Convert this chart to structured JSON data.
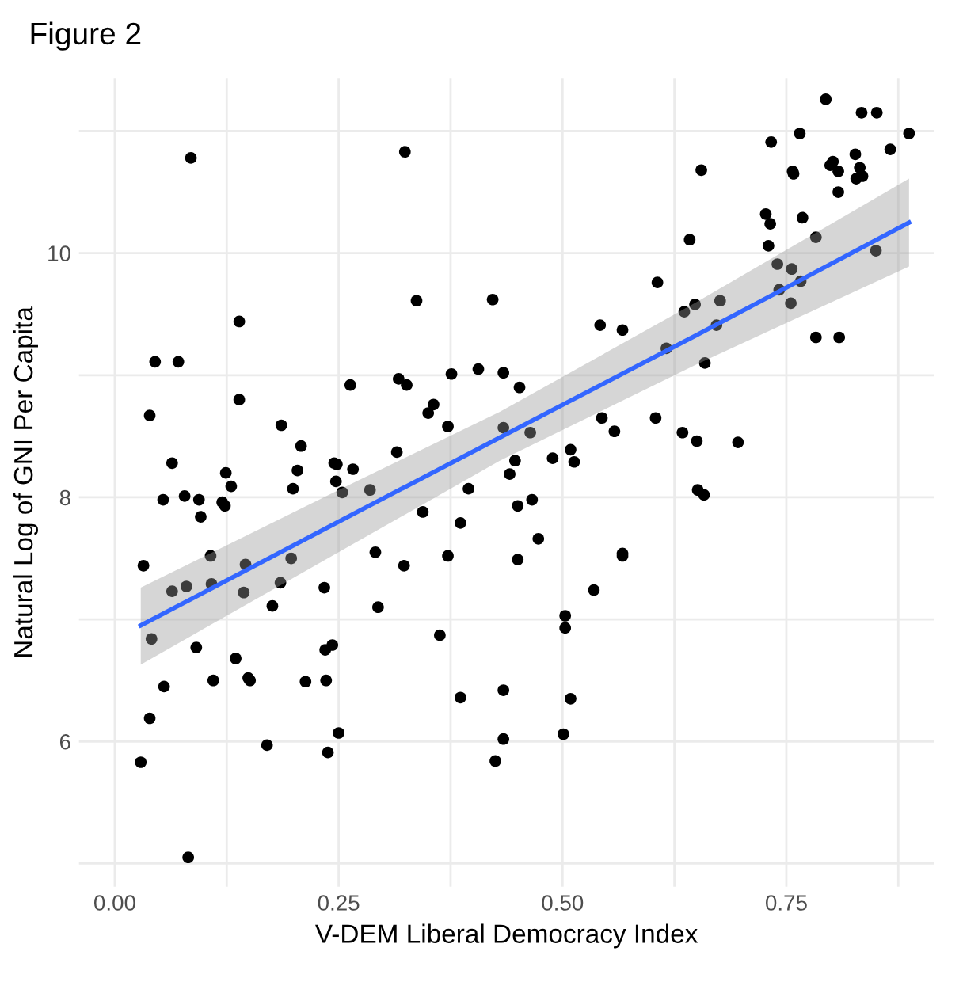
{
  "chart_data": {
    "type": "scatter",
    "title": "Figure 2",
    "xlabel": "V-DEM Liberal Democracy Index",
    "ylabel": "Natural Log of GNI Per Capita",
    "xlim": [
      -0.04,
      0.915
    ],
    "ylim": [
      4.81,
      11.43
    ],
    "xticks": [
      {
        "value": 0,
        "label": "0.00"
      },
      {
        "value": 0.125,
        "label": null
      },
      {
        "value": 0.25,
        "label": "0.25"
      },
      {
        "value": 0.375,
        "label": null
      },
      {
        "value": 0.5,
        "label": "0.50"
      },
      {
        "value": 0.625,
        "label": null
      },
      {
        "value": 0.75,
        "label": "0.75"
      },
      {
        "value": 0.875,
        "label": null
      }
    ],
    "yticks": [
      {
        "value": 5,
        "label": null
      },
      6,
      {
        "value": 7,
        "label": null
      },
      8,
      {
        "value": 9,
        "label": null
      },
      10,
      {
        "value": 11,
        "label": null
      }
    ],
    "grid": true,
    "series": [
      {
        "marker": "circle",
        "color": "#000000",
        "x": [
          0.085,
          0.324,
          0.139,
          0.337,
          0.422,
          0.045,
          0.071,
          0.376,
          0.406,
          0.434,
          0.452,
          0.263,
          0.317,
          0.326,
          0.139,
          0.039,
          0.186,
          0.356,
          0.35,
          0.372,
          0.434,
          0.208,
          0.064,
          0.315,
          0.245,
          0.248,
          0.124,
          0.204,
          0.266,
          0.447,
          0.441,
          0.247,
          0.13,
          0.199,
          0.254,
          0.285,
          0.395,
          0.054,
          0.078,
          0.094,
          0.12,
          0.123,
          0.096,
          0.344,
          0.386,
          0.45,
          0.032,
          0.107,
          0.146,
          0.197,
          0.291,
          0.372,
          0.45,
          0.323,
          0.064,
          0.08,
          0.108,
          0.144,
          0.185,
          0.234,
          0.176,
          0.294,
          0.041,
          0.091,
          0.135,
          0.235,
          0.243,
          0.363,
          0.055,
          0.11,
          0.149,
          0.151,
          0.213,
          0.236,
          0.386,
          0.434,
          0.039,
          0.25,
          0.17,
          0.238,
          0.434,
          0.425,
          0.029,
          0.082,
          0.466,
          0.473,
          0.567,
          0.567,
          0.535,
          0.503,
          0.503,
          0.651,
          0.658,
          0.509,
          0.501,
          0.794,
          0.834,
          0.851,
          0.765,
          0.887,
          0.733,
          0.866,
          0.827,
          0.655,
          0.802,
          0.799,
          0.808,
          0.757,
          0.758,
          0.832,
          0.835,
          0.828,
          0.808,
          0.727,
          0.732,
          0.768,
          0.73,
          0.783,
          0.642,
          0.85,
          0.74,
          0.756,
          0.766,
          0.742,
          0.755,
          0.606,
          0.676,
          0.648,
          0.636,
          0.672,
          0.542,
          0.567,
          0.783,
          0.809,
          0.616,
          0.659,
          0.464,
          0.544,
          0.558,
          0.604,
          0.634,
          0.65,
          0.696,
          0.489,
          0.509,
          0.513
        ],
        "values": [
          10.78,
          10.83,
          9.44,
          9.61,
          9.62,
          9.11,
          9.11,
          9.01,
          9.05,
          9.02,
          8.9,
          8.92,
          8.97,
          8.92,
          8.8,
          8.67,
          8.59,
          8.76,
          8.69,
          8.58,
          8.57,
          8.42,
          8.28,
          8.37,
          8.28,
          8.27,
          8.2,
          8.22,
          8.23,
          8.3,
          8.19,
          8.13,
          8.09,
          8.07,
          8.04,
          8.06,
          8.07,
          7.98,
          8.01,
          7.98,
          7.96,
          7.93,
          7.84,
          7.88,
          7.79,
          7.93,
          7.44,
          7.52,
          7.45,
          7.5,
          7.55,
          7.52,
          7.49,
          7.44,
          7.23,
          7.27,
          7.29,
          7.22,
          7.3,
          7.26,
          7.11,
          7.1,
          6.84,
          6.77,
          6.68,
          6.75,
          6.79,
          6.87,
          6.45,
          6.5,
          6.52,
          6.5,
          6.49,
          6.5,
          6.36,
          6.42,
          6.19,
          6.07,
          5.97,
          5.91,
          6.02,
          5.84,
          5.83,
          5.05,
          7.98,
          7.66,
          7.54,
          7.52,
          7.24,
          7.03,
          6.93,
          8.06,
          8.02,
          6.35,
          6.06,
          11.26,
          11.15,
          11.15,
          10.98,
          10.98,
          10.91,
          10.85,
          10.81,
          10.68,
          10.75,
          10.72,
          10.67,
          10.67,
          10.65,
          10.7,
          10.63,
          10.61,
          10.5,
          10.32,
          10.24,
          10.29,
          10.06,
          10.13,
          10.11,
          10.02,
          9.91,
          9.87,
          9.77,
          9.7,
          9.59,
          9.76,
          9.61,
          9.58,
          9.52,
          9.41,
          9.41,
          9.37,
          9.31,
          9.31,
          9.22,
          9.1,
          8.53,
          8.65,
          8.54,
          8.65,
          8.53,
          8.46,
          8.45,
          8.32,
          8.39,
          8.29
        ]
      },
      {
        "type": "line",
        "marker": "none",
        "color": "#3366ff",
        "x": [
          0.029,
          0.25,
          0.43,
          0.65,
          0.887
        ],
        "values": [
          6.95,
          7.8,
          8.49,
          9.33,
          10.25
        ],
        "lower": [
          6.63,
          7.55,
          8.3,
          9.09,
          9.89
        ],
        "upper": [
          7.26,
          8.06,
          8.7,
          9.6,
          10.61
        ]
      }
    ]
  }
}
